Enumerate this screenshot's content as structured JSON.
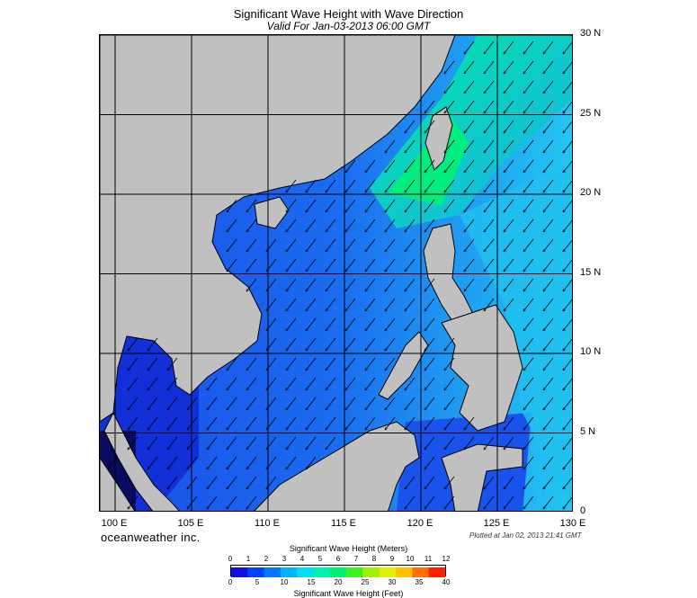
{
  "header": {
    "title": "Significant Wave Height with Wave Direction",
    "subtitle": "Valid For Jan-03-2013 06:00 GMT"
  },
  "map": {
    "lon_range": [
      99,
      130
    ],
    "lat_range": [
      0,
      30
    ],
    "lon_labels": [
      "100 E",
      "105 E",
      "110 E",
      "115 E",
      "120 E",
      "125 E",
      "130 E"
    ],
    "lat_labels": [
      "30 N",
      "25 N",
      "20 N",
      "15 N",
      "10 N",
      "5 N",
      "0"
    ],
    "land_color": "#c0c0c0",
    "dominant_wave_direction": "toward southwest"
  },
  "footer": {
    "brand": "oceanweather inc.",
    "plotted": "Plotted at Jan 02, 2013 21:41 GMT"
  },
  "colorbar": {
    "title_top": "Significant Wave Height (Meters)",
    "title_bottom": "Significant Wave Height (Feet)",
    "meter_ticks": [
      "0",
      "1",
      "2",
      "3",
      "4",
      "5",
      "6",
      "7",
      "8",
      "9",
      "10",
      "11",
      "12"
    ],
    "feet_ticks": [
      "0",
      "5",
      "10",
      "15",
      "20",
      "25",
      "30",
      "35",
      "40"
    ],
    "colors": [
      "#1010e0",
      "#0040ff",
      "#0078ff",
      "#00b4ff",
      "#00dcf0",
      "#00f0b0",
      "#00f070",
      "#40f020",
      "#a0f000",
      "#e0f000",
      "#ffc000",
      "#ff7000",
      "#ff2000"
    ]
  }
}
